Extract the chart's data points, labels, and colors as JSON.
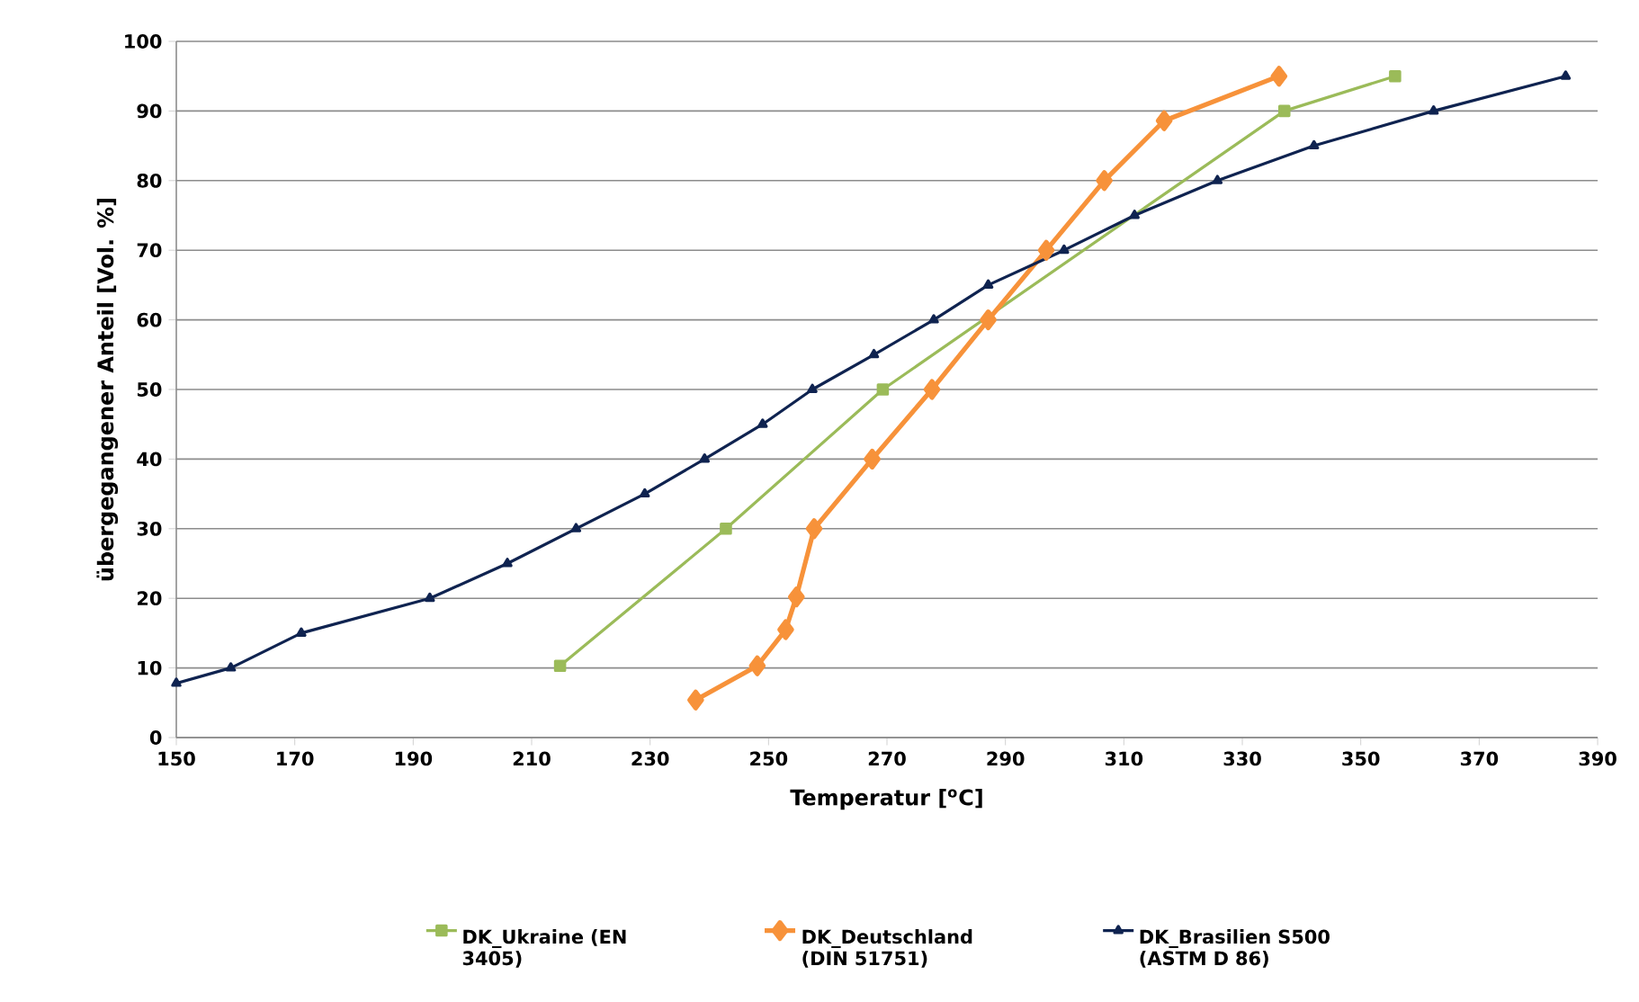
{
  "chart_data": {
    "type": "line",
    "xlabel": "Temperatur [$^{o}$C]",
    "ylabel": "übergegangener Anteil [Vol. %]",
    "xlim": [
      150,
      390
    ],
    "xticks": [
      150,
      170,
      190,
      210,
      230,
      250,
      270,
      290,
      310,
      330,
      350,
      370,
      390
    ],
    "ylim": [
      0,
      100
    ],
    "yticks": [
      0,
      10,
      20,
      30,
      40,
      50,
      60,
      70,
      80,
      90,
      100
    ],
    "grid": "y",
    "legend": "bottom",
    "series": [
      {
        "name": "DK_Ukraine (EN 3405)",
        "color": "#9bbb59",
        "marker": "square",
        "x": [
          214.8,
          242.8,
          269.3,
          337.1,
          355.8
        ],
        "values": [
          10.3,
          30,
          50,
          90,
          95
        ]
      },
      {
        "name": "DK_Deutschland (DIN 51751)",
        "color": "#f7923a",
        "marker": "diamond",
        "x": [
          237.7,
          248.1,
          252.9,
          254.7,
          257.7,
          267.5,
          277.6,
          287.1,
          296.9,
          306.7,
          316.8,
          336.2
        ],
        "values": [
          5.4,
          10.3,
          15.5,
          20.2,
          30,
          40,
          50,
          60,
          70,
          80,
          88.6,
          95
        ]
      },
      {
        "name": "DK_Brasilien S500 (ASTM D 86)",
        "color": "#0f2350",
        "marker": "triangle",
        "x": [
          150,
          159.2,
          171.1,
          192.8,
          205.9,
          217.5,
          229.1,
          239.2,
          249.0,
          257.4,
          267.8,
          277.9,
          287.1,
          299.9,
          311.8,
          325.8,
          342.1,
          362.3,
          384.6
        ],
        "values": [
          7.8,
          10,
          15,
          20,
          25,
          30,
          35,
          40,
          45,
          50,
          55,
          60,
          65,
          70,
          75,
          80,
          85,
          90,
          95
        ]
      }
    ]
  }
}
